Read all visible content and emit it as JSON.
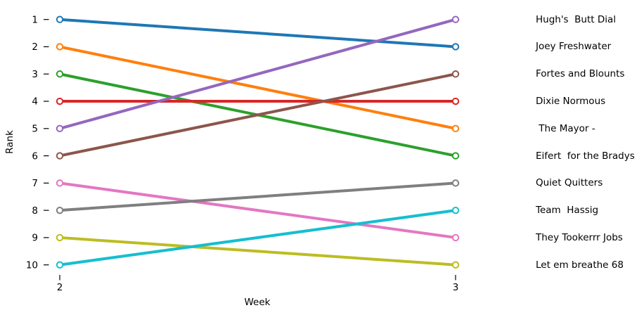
{
  "figure": {
    "background": "#ffffff",
    "text_color": "#000000"
  },
  "chart_data": {
    "type": "line",
    "subtype": "bump-rank-chart",
    "title": "",
    "xlabel": "Week",
    "ylabel": "Rank",
    "x": [
      2,
      3
    ],
    "x_tick_labels": [
      "2",
      "3"
    ],
    "y_tick_labels": [
      "1",
      "2",
      "3",
      "4",
      "5",
      "6",
      "7",
      "8",
      "9",
      "10"
    ],
    "y_axis_inverted": true,
    "ylim": [
      0.5,
      10.5
    ],
    "grid": false,
    "marker": "open-circle",
    "legend_position": "outside-right",
    "series": [
      {
        "name": "Hugh's  Butt Dial",
        "color": "#1f77b4",
        "x": [
          2,
          3
        ],
        "values": [
          1,
          2
        ]
      },
      {
        "name": "Joey Freshwater",
        "color": "#ff7f0e",
        "x": [
          2,
          3
        ],
        "values": [
          2,
          5
        ]
      },
      {
        "name": "Fortes and Blounts",
        "color": "#2ca02c",
        "x": [
          2,
          3
        ],
        "values": [
          3,
          6
        ]
      },
      {
        "name": "Dixie Normous",
        "color": "#d62728",
        "x": [
          2,
          3
        ],
        "values": [
          4,
          4
        ]
      },
      {
        "name": " The Mayor -",
        "color": "#9467bd",
        "x": [
          2,
          3
        ],
        "values": [
          5,
          1
        ]
      },
      {
        "name": "Eifert  for the Bradys",
        "color": "#8c564b",
        "x": [
          2,
          3
        ],
        "values": [
          6,
          3
        ]
      },
      {
        "name": "Quiet Quitters",
        "color": "#e377c2",
        "x": [
          2,
          3
        ],
        "values": [
          7,
          9
        ]
      },
      {
        "name": "Team  Hassig",
        "color": "#7f7f7f",
        "x": [
          2,
          3
        ],
        "values": [
          8,
          7
        ]
      },
      {
        "name": "They Tookerrr Jobs",
        "color": "#bcbd22",
        "x": [
          2,
          3
        ],
        "values": [
          9,
          10
        ]
      },
      {
        "name": "Let em breathe 68",
        "color": "#17becf",
        "x": [
          2,
          3
        ],
        "values": [
          10,
          8
        ]
      }
    ]
  }
}
